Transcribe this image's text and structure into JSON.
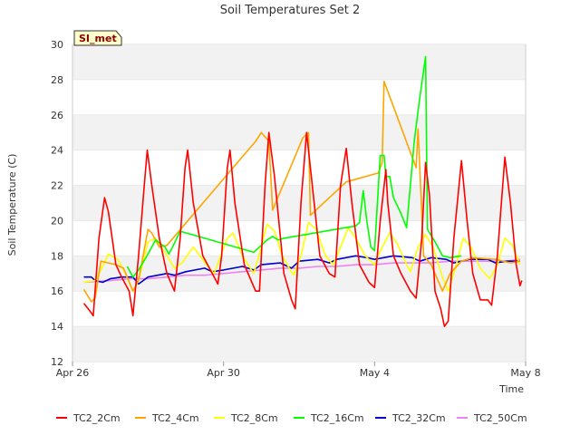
{
  "chart_data": {
    "type": "line",
    "title": "Soil Temperatures Set 2",
    "xlabel": "Time",
    "ylabel": "Soil Temperature (C)",
    "badge": "SI_met",
    "ylim": [
      12,
      30
    ],
    "yticks": [
      12,
      14,
      16,
      18,
      20,
      22,
      24,
      26,
      28,
      30
    ],
    "xlim": [
      0,
      12
    ],
    "xticks": [
      {
        "x": 0,
        "label": "Apr 26"
      },
      {
        "x": 4,
        "label": "Apr 30"
      },
      {
        "x": 8,
        "label": "May 4"
      },
      {
        "x": 12,
        "label": "May 8"
      }
    ],
    "legend_position": "bottom",
    "grid": "horizontal bands",
    "x_units": "days since Apr 26",
    "series": [
      {
        "name": "TC2_2Cm",
        "color": "#ff0000",
        "points": [
          [
            0.3,
            15.3
          ],
          [
            0.45,
            14.9
          ],
          [
            0.55,
            14.6
          ],
          [
            0.7,
            19.0
          ],
          [
            0.85,
            21.3
          ],
          [
            0.95,
            20.5
          ],
          [
            1.15,
            17.5
          ],
          [
            1.3,
            16.8
          ],
          [
            1.5,
            16.0
          ],
          [
            1.6,
            14.6
          ],
          [
            1.75,
            18.0
          ],
          [
            1.9,
            22.0
          ],
          [
            1.98,
            24.0
          ],
          [
            2.1,
            22.0
          ],
          [
            2.3,
            19.0
          ],
          [
            2.5,
            17.0
          ],
          [
            2.7,
            16.0
          ],
          [
            2.85,
            19.0
          ],
          [
            2.98,
            23.0
          ],
          [
            3.05,
            24.0
          ],
          [
            3.2,
            21.0
          ],
          [
            3.45,
            18.0
          ],
          [
            3.7,
            17.0
          ],
          [
            3.85,
            16.4
          ],
          [
            3.95,
            18.0
          ],
          [
            4.1,
            23.0
          ],
          [
            4.17,
            24.0
          ],
          [
            4.3,
            21.0
          ],
          [
            4.55,
            17.5
          ],
          [
            4.75,
            16.5
          ],
          [
            4.85,
            16.0
          ],
          [
            4.95,
            16.0
          ],
          [
            5.1,
            22.0
          ],
          [
            5.2,
            25.0
          ],
          [
            5.35,
            22.5
          ],
          [
            5.6,
            17.0
          ],
          [
            5.8,
            15.5
          ],
          [
            5.9,
            15.0
          ],
          [
            6.05,
            21.0
          ],
          [
            6.2,
            25.0
          ],
          [
            6.35,
            22.0
          ],
          [
            6.55,
            18.0
          ],
          [
            6.8,
            17.0
          ],
          [
            6.95,
            16.8
          ],
          [
            7.1,
            22.0
          ],
          [
            7.25,
            24.1
          ],
          [
            7.4,
            21.0
          ],
          [
            7.6,
            17.5
          ],
          [
            7.85,
            16.5
          ],
          [
            8.0,
            16.2
          ],
          [
            8.15,
            20.0
          ],
          [
            8.3,
            22.9
          ],
          [
            8.35,
            21.0
          ],
          [
            8.5,
            18.0
          ],
          [
            8.7,
            17.0
          ],
          [
            8.95,
            16.0
          ],
          [
            9.1,
            15.6
          ],
          [
            9.25,
            19.0
          ],
          [
            9.35,
            23.3
          ],
          [
            9.45,
            21.5
          ],
          [
            9.6,
            16.0
          ],
          [
            9.75,
            15.0
          ],
          [
            9.85,
            14.0
          ],
          [
            9.95,
            14.3
          ],
          [
            10.1,
            19.0
          ],
          [
            10.3,
            23.4
          ],
          [
            10.45,
            20.0
          ],
          [
            10.6,
            17.0
          ],
          [
            10.8,
            15.5
          ],
          [
            11.0,
            15.5
          ],
          [
            11.1,
            15.2
          ],
          [
            11.25,
            18.0
          ],
          [
            11.45,
            23.6
          ],
          [
            11.6,
            21.0
          ],
          [
            11.75,
            17.5
          ],
          [
            11.85,
            16.3
          ],
          [
            11.9,
            16.6
          ]
        ]
      },
      {
        "name": "TC2_4Cm",
        "color": "#ffa500",
        "points": [
          [
            0.3,
            16.1
          ],
          [
            0.5,
            15.4
          ],
          [
            0.6,
            15.6
          ],
          [
            0.75,
            17.7
          ],
          [
            0.95,
            17.6
          ],
          [
            1.15,
            17.5
          ],
          [
            1.35,
            17.3
          ],
          [
            1.6,
            16.0
          ],
          [
            1.75,
            16.6
          ],
          [
            2.0,
            19.5
          ],
          [
            2.1,
            19.3
          ],
          [
            2.3,
            18.5
          ],
          [
            2.5,
            18.6
          ],
          [
            2.9,
            19.6
          ],
          [
            4.25,
            23.0
          ],
          [
            4.85,
            24.5
          ],
          [
            5.0,
            25.0
          ],
          [
            5.2,
            24.5
          ],
          [
            5.3,
            20.6
          ],
          [
            6.1,
            24.7
          ],
          [
            6.25,
            25.0
          ],
          [
            6.3,
            20.3
          ],
          [
            7.25,
            22.2
          ],
          [
            8.1,
            22.7
          ],
          [
            8.2,
            23.3
          ],
          [
            8.25,
            27.9
          ],
          [
            9.1,
            23.0
          ],
          [
            9.15,
            25.2
          ],
          [
            9.3,
            18.0
          ],
          [
            9.5,
            17.5
          ],
          [
            9.8,
            16.0
          ],
          [
            10.0,
            17.0
          ],
          [
            10.3,
            17.7
          ],
          [
            10.6,
            17.9
          ],
          [
            11.2,
            17.8
          ],
          [
            11.6,
            17.6
          ],
          [
            11.85,
            17.7
          ]
        ]
      },
      {
        "name": "TC2_8Cm",
        "color": "#ffff00",
        "points": [
          [
            0.3,
            16.5
          ],
          [
            0.6,
            16.6
          ],
          [
            0.75,
            17.2
          ],
          [
            0.95,
            18.1
          ],
          [
            1.2,
            17.8
          ],
          [
            1.4,
            17.0
          ],
          [
            1.6,
            16.0
          ],
          [
            1.75,
            16.6
          ],
          [
            2.0,
            18.8
          ],
          [
            2.2,
            19.0
          ],
          [
            2.5,
            18.0
          ],
          [
            2.7,
            17.3
          ],
          [
            2.9,
            17.6
          ],
          [
            3.2,
            18.5
          ],
          [
            3.55,
            17.5
          ],
          [
            3.75,
            17.0
          ],
          [
            4.1,
            19.0
          ],
          [
            4.25,
            19.3
          ],
          [
            4.5,
            18.0
          ],
          [
            4.8,
            17.0
          ],
          [
            5.0,
            18.5
          ],
          [
            5.15,
            19.8
          ],
          [
            5.35,
            19.4
          ],
          [
            5.55,
            18.0
          ],
          [
            5.85,
            16.9
          ],
          [
            6.05,
            18.0
          ],
          [
            6.25,
            19.9
          ],
          [
            6.45,
            19.5
          ],
          [
            6.7,
            18.0
          ],
          [
            6.9,
            17.5
          ],
          [
            7.1,
            18.5
          ],
          [
            7.3,
            19.6
          ],
          [
            7.5,
            19.0
          ],
          [
            7.75,
            18.0
          ],
          [
            8.0,
            17.5
          ],
          [
            8.2,
            18.5
          ],
          [
            8.4,
            19.3
          ],
          [
            8.6,
            18.7
          ],
          [
            8.85,
            17.5
          ],
          [
            8.95,
            17.1
          ],
          [
            9.15,
            18.5
          ],
          [
            9.35,
            19.2
          ],
          [
            9.55,
            18.5
          ],
          [
            9.8,
            16.8
          ],
          [
            9.95,
            16.0
          ],
          [
            10.1,
            17.0
          ],
          [
            10.35,
            19.0
          ],
          [
            10.55,
            18.5
          ],
          [
            10.8,
            17.3
          ],
          [
            11.05,
            16.7
          ],
          [
            11.25,
            17.5
          ],
          [
            11.45,
            19.0
          ],
          [
            11.65,
            18.6
          ],
          [
            11.85,
            17.5
          ]
        ]
      },
      {
        "name": "TC2_16Cm",
        "color": "#00ff00",
        "points": [
          [
            1.45,
            17.4
          ],
          [
            1.6,
            16.8
          ],
          [
            1.75,
            17.2
          ],
          [
            2.0,
            18.1
          ],
          [
            2.2,
            18.9
          ],
          [
            2.45,
            18.5
          ],
          [
            2.55,
            18.1
          ],
          [
            2.65,
            18.5
          ],
          [
            2.85,
            19.4
          ],
          [
            4.8,
            18.2
          ],
          [
            5.15,
            18.9
          ],
          [
            5.3,
            19.1
          ],
          [
            5.45,
            18.9
          ],
          [
            5.6,
            19.0
          ],
          [
            7.5,
            19.7
          ],
          [
            7.6,
            19.9
          ],
          [
            7.7,
            21.7
          ],
          [
            7.8,
            19.9
          ],
          [
            7.9,
            18.5
          ],
          [
            8.0,
            18.3
          ],
          [
            8.15,
            23.7
          ],
          [
            8.25,
            23.7
          ],
          [
            8.3,
            22.5
          ],
          [
            8.4,
            22.5
          ],
          [
            8.5,
            21.3
          ],
          [
            8.7,
            20.4
          ],
          [
            8.85,
            19.6
          ],
          [
            9.05,
            24.5
          ],
          [
            9.2,
            27.0
          ],
          [
            9.35,
            29.3
          ],
          [
            9.4,
            19.5
          ],
          [
            9.6,
            18.8
          ],
          [
            9.8,
            18.0
          ],
          [
            10.0,
            17.9
          ],
          [
            10.3,
            18.0
          ]
        ]
      },
      {
        "name": "TC2_32Cm",
        "color": "#0000cc",
        "points": [
          [
            0.3,
            16.8
          ],
          [
            0.5,
            16.8
          ],
          [
            0.6,
            16.6
          ],
          [
            0.8,
            16.5
          ],
          [
            1.0,
            16.7
          ],
          [
            1.3,
            16.8
          ],
          [
            1.6,
            16.8
          ],
          [
            1.75,
            16.4
          ],
          [
            2.0,
            16.8
          ],
          [
            2.5,
            17.0
          ],
          [
            2.7,
            16.9
          ],
          [
            3.0,
            17.1
          ],
          [
            3.5,
            17.3
          ],
          [
            3.7,
            17.1
          ],
          [
            4.0,
            17.2
          ],
          [
            4.5,
            17.4
          ],
          [
            4.8,
            17.2
          ],
          [
            5.0,
            17.5
          ],
          [
            5.5,
            17.6
          ],
          [
            5.8,
            17.3
          ],
          [
            6.0,
            17.7
          ],
          [
            6.5,
            17.8
          ],
          [
            6.8,
            17.6
          ],
          [
            7.0,
            17.8
          ],
          [
            7.5,
            18.0
          ],
          [
            7.8,
            17.9
          ],
          [
            8.0,
            17.8
          ],
          [
            8.5,
            18.0
          ],
          [
            9.0,
            17.9
          ],
          [
            9.2,
            17.7
          ],
          [
            9.5,
            17.9
          ],
          [
            9.9,
            17.8
          ],
          [
            10.1,
            17.6
          ],
          [
            10.5,
            17.8
          ],
          [
            11.0,
            17.8
          ],
          [
            11.2,
            17.6
          ],
          [
            11.5,
            17.7
          ],
          [
            11.85,
            17.7
          ]
        ]
      },
      {
        "name": "TC2_50Cm",
        "color": "#ee82ee",
        "points": [
          [
            0.3,
            16.5
          ],
          [
            1.0,
            16.6
          ],
          [
            1.5,
            16.7
          ],
          [
            2.0,
            16.7
          ],
          [
            2.5,
            16.8
          ],
          [
            3.0,
            16.9
          ],
          [
            3.5,
            16.9
          ],
          [
            4.0,
            17.0
          ],
          [
            4.5,
            17.1
          ],
          [
            5.0,
            17.2
          ],
          [
            5.5,
            17.3
          ],
          [
            6.0,
            17.3
          ],
          [
            6.5,
            17.4
          ],
          [
            7.0,
            17.4
          ],
          [
            7.5,
            17.5
          ],
          [
            8.0,
            17.5
          ],
          [
            8.5,
            17.6
          ],
          [
            9.0,
            17.6
          ],
          [
            9.5,
            17.6
          ],
          [
            10.0,
            17.7
          ],
          [
            10.5,
            17.7
          ],
          [
            11.0,
            17.7
          ],
          [
            11.5,
            17.7
          ],
          [
            11.85,
            17.8
          ]
        ]
      }
    ]
  }
}
